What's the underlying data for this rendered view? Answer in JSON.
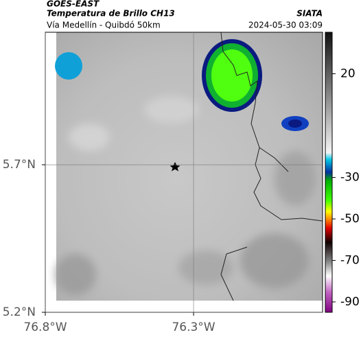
{
  "header": {
    "source": "GOES-EAST",
    "product": "Temperatura de Brillo CH13",
    "route": "Vía Medellín - Quibdó 50km",
    "agency": "SIATA",
    "timestamp": "2024-05-30 03:09"
  },
  "map": {
    "lon_range": [
      -76.8,
      -75.865
    ],
    "lat_range": [
      5.2,
      6.149
    ],
    "lon_ticks": [
      {
        "value": -76.8,
        "label": "76.8°W"
      },
      {
        "value": -76.3,
        "label": "76.3°W"
      }
    ],
    "lat_ticks": [
      {
        "value": 5.7,
        "label": "5.7°N"
      },
      {
        "value": 5.2,
        "label": "5.2°N"
      }
    ],
    "grid": true
  },
  "colorbar": {
    "range": [
      40,
      -95
    ],
    "ticks": [
      20,
      -30,
      -50,
      -70,
      -90
    ]
  }
}
